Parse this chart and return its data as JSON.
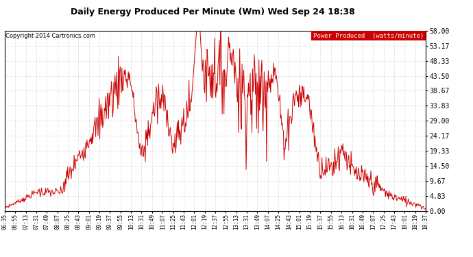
{
  "title": "Daily Energy Produced Per Minute (Wm) Wed Sep 24 18:38",
  "copyright": "Copyright 2014 Cartronics.com",
  "legend_label": "Power Produced  (watts/minute)",
  "legend_bg": "#cc0000",
  "legend_fg": "#ffffff",
  "line_color": "#cc0000",
  "background_color": "#ffffff",
  "plot_bg": "#ffffff",
  "grid_color": "#bbbbbb",
  "ylim": [
    0,
    58.0
  ],
  "yticks": [
    0.0,
    4.83,
    9.67,
    14.5,
    19.33,
    24.17,
    29.0,
    33.83,
    38.67,
    43.5,
    48.33,
    53.17,
    58.0
  ],
  "xtick_labels": [
    "06:35",
    "06:55",
    "07:13",
    "07:31",
    "07:49",
    "08:07",
    "08:25",
    "08:43",
    "09:01",
    "09:19",
    "09:37",
    "09:55",
    "10:13",
    "10:31",
    "10:49",
    "11:07",
    "11:25",
    "11:43",
    "12:01",
    "12:19",
    "12:37",
    "12:55",
    "13:13",
    "13:31",
    "13:49",
    "14:07",
    "14:25",
    "14:43",
    "15:01",
    "15:19",
    "15:37",
    "15:55",
    "16:13",
    "16:31",
    "16:49",
    "17:07",
    "17:25",
    "17:43",
    "18:01",
    "18:19",
    "18:37"
  ]
}
